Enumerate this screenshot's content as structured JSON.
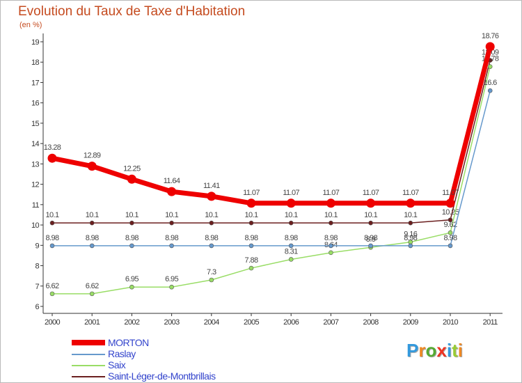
{
  "chart_data": {
    "type": "line",
    "title": "Evolution du Taux de Taxe d'Habitation",
    "unit": "(en %)",
    "x": [
      "2000",
      "2001",
      "2002",
      "2003",
      "2004",
      "2005",
      "2006",
      "2007",
      "2008",
      "2009",
      "2010",
      "2011"
    ],
    "ylim": [
      6,
      19
    ],
    "yticks": [
      6,
      7,
      8,
      9,
      10,
      11,
      12,
      13,
      14,
      15,
      16,
      17,
      18,
      19
    ],
    "grid": false,
    "legend_position": "bottom-left",
    "series": [
      {
        "name": "Saint-Léger-de-Montbrillais",
        "color": "#6b1f1f",
        "width": 1.5,
        "values": [
          10.1,
          10.1,
          10.1,
          10.1,
          10.1,
          10.1,
          10.1,
          10.1,
          10.1,
          10.1,
          10.25,
          18.09
        ],
        "labels": [
          "10.1",
          "10.1",
          "10.1",
          "10.1",
          "10.1",
          "10.1",
          "10.1",
          "10.1",
          "10.1",
          "10.1",
          "10.25",
          "18.09"
        ]
      },
      {
        "name": "Saix",
        "color": "#99dd66",
        "width": 1.5,
        "values": [
          6.62,
          6.62,
          6.95,
          6.95,
          7.3,
          7.88,
          8.31,
          8.64,
          8.9,
          9.16,
          9.62,
          17.78
        ],
        "labels": [
          "6.62",
          "6.62",
          "6.95",
          "6.95",
          "7.3",
          "7.88",
          "8.31",
          "8.64",
          "8.9",
          "9.16",
          "9.62",
          "17.78"
        ]
      },
      {
        "name": "Raslay",
        "color": "#6699cc",
        "width": 1.5,
        "values": [
          8.98,
          8.98,
          8.98,
          8.98,
          8.98,
          8.98,
          8.98,
          8.98,
          8.98,
          8.98,
          8.98,
          16.6
        ],
        "labels": [
          "8.98",
          "8.98",
          "8.98",
          "8.98",
          "8.98",
          "8.98",
          "8.98",
          "8.98",
          "8.98",
          "8.98",
          "8.98",
          "16.6"
        ]
      },
      {
        "name": "MORTON",
        "color": "#ee0000",
        "width": 7,
        "values": [
          13.28,
          12.89,
          12.25,
          11.64,
          11.41,
          11.07,
          11.07,
          11.07,
          11.07,
          11.07,
          11.07,
          18.76
        ],
        "labels": [
          "13.28",
          "12.89",
          "12.25",
          "11.64",
          "11.41",
          "11.07",
          "11.07",
          "11.07",
          "11.07",
          "11.07",
          "11.07",
          "18.76"
        ]
      }
    ],
    "legend": [
      {
        "name": "MORTON",
        "color": "#ee0000"
      },
      {
        "name": "Raslay",
        "color": "#6699cc"
      },
      {
        "name": "Saix",
        "color": "#99dd66"
      },
      {
        "name": "Saint-Léger-de-Montbrillais",
        "color": "#6b1f1f"
      }
    ]
  },
  "branding": {
    "logo_letters": [
      "P",
      "r",
      "o",
      "x",
      "i",
      "t",
      "i"
    ],
    "logo_colors": [
      "#3399dd",
      "#ee8822",
      "#55aa33",
      "#ee3322",
      "#3399dd",
      "#99cc33",
      "#ee8822"
    ]
  }
}
